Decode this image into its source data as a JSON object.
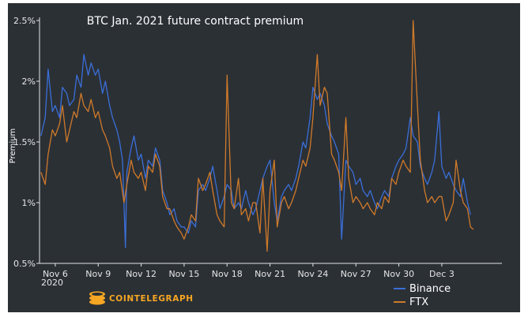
{
  "chart_data": {
    "type": "line",
    "title": "BTC Jan. 2021 future contract premium",
    "ylabel": "Premium",
    "xlabel": "",
    "ylim": [
      0.5,
      2.5
    ],
    "xlim": [
      4.9,
      37.2
    ],
    "y_ticks": [
      "0.5%",
      "1%",
      "1.5%",
      "2%",
      "2.5%"
    ],
    "y_tick_values": [
      0.5,
      1.0,
      1.5,
      2.0,
      2.5
    ],
    "x_ticks": [
      "Nov 6",
      "Nov 9",
      "Nov 12",
      "Nov 15",
      "Nov 18",
      "Nov 21",
      "Nov 24",
      "Nov 27",
      "Nov 30",
      "Dec 3"
    ],
    "x_tick_values": [
      6,
      9,
      12,
      15,
      18,
      21,
      24,
      27,
      30,
      33
    ],
    "x_year_label": "2020",
    "grid": false,
    "legend_position": "bottom-right",
    "series": [
      {
        "name": "Binance",
        "color": "#3a6fd8",
        "points": [
          [
            5.0,
            1.55
          ],
          [
            5.3,
            1.7
          ],
          [
            5.5,
            2.1
          ],
          [
            5.8,
            1.75
          ],
          [
            6.0,
            1.8
          ],
          [
            6.3,
            1.7
          ],
          [
            6.5,
            1.95
          ],
          [
            6.8,
            1.9
          ],
          [
            7.0,
            1.8
          ],
          [
            7.3,
            1.85
          ],
          [
            7.5,
            2.05
          ],
          [
            7.8,
            1.95
          ],
          [
            8.0,
            2.22
          ],
          [
            8.3,
            2.05
          ],
          [
            8.5,
            2.15
          ],
          [
            8.8,
            2.05
          ],
          [
            9.0,
            2.1
          ],
          [
            9.3,
            1.9
          ],
          [
            9.5,
            2.0
          ],
          [
            9.8,
            1.8
          ],
          [
            10.0,
            1.7
          ],
          [
            10.3,
            1.6
          ],
          [
            10.5,
            1.5
          ],
          [
            10.7,
            1.35
          ],
          [
            10.9,
            0.63
          ],
          [
            11.0,
            1.25
          ],
          [
            11.3,
            1.45
          ],
          [
            11.5,
            1.55
          ],
          [
            11.8,
            1.35
          ],
          [
            12.0,
            1.4
          ],
          [
            12.3,
            1.2
          ],
          [
            12.5,
            1.35
          ],
          [
            12.8,
            1.3
          ],
          [
            13.0,
            1.45
          ],
          [
            13.3,
            1.35
          ],
          [
            13.5,
            1.1
          ],
          [
            13.8,
            1.0
          ],
          [
            14.0,
            0.9
          ],
          [
            14.3,
            0.95
          ],
          [
            14.5,
            0.85
          ],
          [
            14.8,
            0.8
          ],
          [
            15.0,
            0.8
          ],
          [
            15.3,
            0.75
          ],
          [
            15.5,
            0.85
          ],
          [
            15.8,
            0.8
          ],
          [
            16.0,
            1.1
          ],
          [
            16.3,
            1.15
          ],
          [
            16.5,
            1.1
          ],
          [
            16.8,
            1.2
          ],
          [
            17.0,
            1.3
          ],
          [
            17.3,
            1.1
          ],
          [
            17.5,
            0.95
          ],
          [
            17.8,
            1.05
          ],
          [
            18.0,
            1.15
          ],
          [
            18.3,
            1.1
          ],
          [
            18.5,
            0.95
          ],
          [
            18.8,
            1.0
          ],
          [
            19.0,
            0.95
          ],
          [
            19.3,
            1.1
          ],
          [
            19.5,
            1.0
          ],
          [
            19.8,
            0.9
          ],
          [
            20.0,
            0.95
          ],
          [
            20.3,
            1.1
          ],
          [
            20.5,
            1.2
          ],
          [
            20.8,
            1.3
          ],
          [
            21.0,
            1.35
          ],
          [
            21.3,
            1.0
          ],
          [
            21.5,
            0.85
          ],
          [
            21.8,
            1.05
          ],
          [
            22.0,
            1.1
          ],
          [
            22.3,
            1.15
          ],
          [
            22.5,
            1.1
          ],
          [
            22.8,
            1.2
          ],
          [
            23.0,
            1.3
          ],
          [
            23.3,
            1.5
          ],
          [
            23.5,
            1.45
          ],
          [
            23.8,
            1.7
          ],
          [
            24.0,
            1.95
          ],
          [
            24.3,
            1.85
          ],
          [
            24.5,
            1.9
          ],
          [
            24.8,
            1.8
          ],
          [
            25.0,
            1.65
          ],
          [
            25.3,
            1.55
          ],
          [
            25.5,
            1.5
          ],
          [
            25.8,
            1.4
          ],
          [
            26.0,
            0.7
          ],
          [
            26.3,
            1.35
          ],
          [
            26.5,
            1.3
          ],
          [
            26.8,
            1.25
          ],
          [
            27.0,
            1.15
          ],
          [
            27.3,
            1.2
          ],
          [
            27.5,
            1.1
          ],
          [
            27.8,
            1.05
          ],
          [
            28.0,
            1.1
          ],
          [
            28.3,
            1.0
          ],
          [
            28.5,
            0.95
          ],
          [
            28.8,
            1.05
          ],
          [
            29.0,
            1.1
          ],
          [
            29.3,
            1.05
          ],
          [
            29.5,
            1.2
          ],
          [
            29.8,
            1.3
          ],
          [
            30.0,
            1.35
          ],
          [
            30.3,
            1.4
          ],
          [
            30.5,
            1.45
          ],
          [
            30.8,
            1.7
          ],
          [
            31.0,
            1.55
          ],
          [
            31.3,
            1.5
          ],
          [
            31.5,
            1.3
          ],
          [
            31.8,
            1.2
          ],
          [
            32.0,
            1.15
          ],
          [
            32.3,
            1.25
          ],
          [
            32.5,
            1.35
          ],
          [
            32.8,
            1.75
          ],
          [
            33.0,
            1.3
          ],
          [
            33.3,
            1.2
          ],
          [
            33.5,
            1.25
          ],
          [
            33.8,
            1.15
          ],
          [
            34.0,
            1.1
          ],
          [
            34.3,
            1.05
          ],
          [
            34.5,
            1.2
          ],
          [
            34.8,
            1.0
          ],
          [
            35.0,
            0.9
          ]
        ]
      },
      {
        "name": "FTX",
        "color": "#d07a2a",
        "points": [
          [
            5.0,
            1.25
          ],
          [
            5.3,
            1.15
          ],
          [
            5.5,
            1.4
          ],
          [
            5.8,
            1.6
          ],
          [
            6.0,
            1.55
          ],
          [
            6.3,
            1.65
          ],
          [
            6.5,
            1.8
          ],
          [
            6.8,
            1.5
          ],
          [
            7.0,
            1.6
          ],
          [
            7.3,
            1.75
          ],
          [
            7.5,
            1.7
          ],
          [
            7.8,
            1.9
          ],
          [
            8.0,
            1.8
          ],
          [
            8.3,
            1.75
          ],
          [
            8.5,
            1.85
          ],
          [
            8.8,
            1.7
          ],
          [
            9.0,
            1.75
          ],
          [
            9.3,
            1.6
          ],
          [
            9.5,
            1.55
          ],
          [
            9.8,
            1.45
          ],
          [
            10.0,
            1.3
          ],
          [
            10.3,
            1.2
          ],
          [
            10.5,
            1.25
          ],
          [
            10.8,
            1.0
          ],
          [
            11.0,
            1.15
          ],
          [
            11.3,
            1.35
          ],
          [
            11.5,
            1.25
          ],
          [
            11.8,
            1.2
          ],
          [
            12.0,
            1.25
          ],
          [
            12.3,
            1.1
          ],
          [
            12.5,
            1.3
          ],
          [
            12.8,
            1.25
          ],
          [
            13.0,
            1.4
          ],
          [
            13.3,
            1.3
          ],
          [
            13.5,
            1.05
          ],
          [
            13.8,
            0.95
          ],
          [
            14.0,
            0.95
          ],
          [
            14.3,
            0.85
          ],
          [
            14.5,
            0.8
          ],
          [
            14.8,
            0.75
          ],
          [
            15.0,
            0.7
          ],
          [
            15.3,
            0.8
          ],
          [
            15.5,
            0.9
          ],
          [
            15.8,
            0.85
          ],
          [
            16.0,
            1.2
          ],
          [
            16.3,
            1.1
          ],
          [
            16.5,
            1.15
          ],
          [
            16.8,
            1.25
          ],
          [
            17.0,
            1.1
          ],
          [
            17.3,
            0.9
          ],
          [
            17.5,
            0.85
          ],
          [
            17.8,
            0.8
          ],
          [
            18.0,
            2.05
          ],
          [
            18.3,
            1.0
          ],
          [
            18.5,
            0.95
          ],
          [
            18.8,
            1.2
          ],
          [
            19.0,
            0.9
          ],
          [
            19.3,
            0.95
          ],
          [
            19.5,
            0.85
          ],
          [
            19.8,
            1.0
          ],
          [
            20.0,
            1.0
          ],
          [
            20.3,
            0.75
          ],
          [
            20.5,
            1.2
          ],
          [
            20.8,
            0.6
          ],
          [
            21.0,
            1.1
          ],
          [
            21.3,
            1.35
          ],
          [
            21.5,
            0.8
          ],
          [
            21.8,
            1.0
          ],
          [
            22.0,
            1.05
          ],
          [
            22.3,
            0.95
          ],
          [
            22.5,
            1.0
          ],
          [
            22.8,
            1.1
          ],
          [
            23.0,
            1.2
          ],
          [
            23.3,
            1.35
          ],
          [
            23.5,
            1.3
          ],
          [
            23.8,
            1.45
          ],
          [
            24.0,
            1.7
          ],
          [
            24.3,
            2.22
          ],
          [
            24.5,
            1.8
          ],
          [
            24.8,
            1.95
          ],
          [
            25.0,
            1.9
          ],
          [
            25.3,
            1.4
          ],
          [
            25.5,
            1.35
          ],
          [
            25.8,
            1.25
          ],
          [
            26.0,
            1.1
          ],
          [
            26.3,
            1.7
          ],
          [
            26.5,
            1.2
          ],
          [
            26.8,
            1.0
          ],
          [
            27.0,
            1.05
          ],
          [
            27.3,
            1.0
          ],
          [
            27.5,
            0.95
          ],
          [
            27.8,
            1.0
          ],
          [
            28.0,
            0.95
          ],
          [
            28.3,
            0.9
          ],
          [
            28.5,
            1.0
          ],
          [
            28.8,
            0.95
          ],
          [
            29.0,
            1.05
          ],
          [
            29.3,
            1.0
          ],
          [
            29.5,
            1.2
          ],
          [
            29.8,
            1.15
          ],
          [
            30.0,
            1.25
          ],
          [
            30.3,
            1.35
          ],
          [
            30.5,
            1.3
          ],
          [
            30.8,
            1.25
          ],
          [
            31.0,
            2.5
          ],
          [
            31.3,
            1.8
          ],
          [
            31.5,
            1.35
          ],
          [
            31.8,
            1.1
          ],
          [
            32.0,
            1.0
          ],
          [
            32.3,
            1.05
          ],
          [
            32.5,
            1.0
          ],
          [
            32.8,
            1.05
          ],
          [
            33.0,
            1.05
          ],
          [
            33.3,
            0.85
          ],
          [
            33.5,
            0.9
          ],
          [
            33.8,
            1.0
          ],
          [
            34.0,
            1.35
          ],
          [
            34.3,
            1.1
          ],
          [
            34.5,
            1.0
          ],
          [
            34.8,
            0.95
          ],
          [
            35.0,
            0.8
          ],
          [
            35.2,
            0.78
          ]
        ]
      }
    ]
  },
  "branding": {
    "logo_text": "COINTELEGRAPH",
    "logo_icon": "cointelegraph-coin-icon",
    "accent_color": "#f5a623"
  }
}
